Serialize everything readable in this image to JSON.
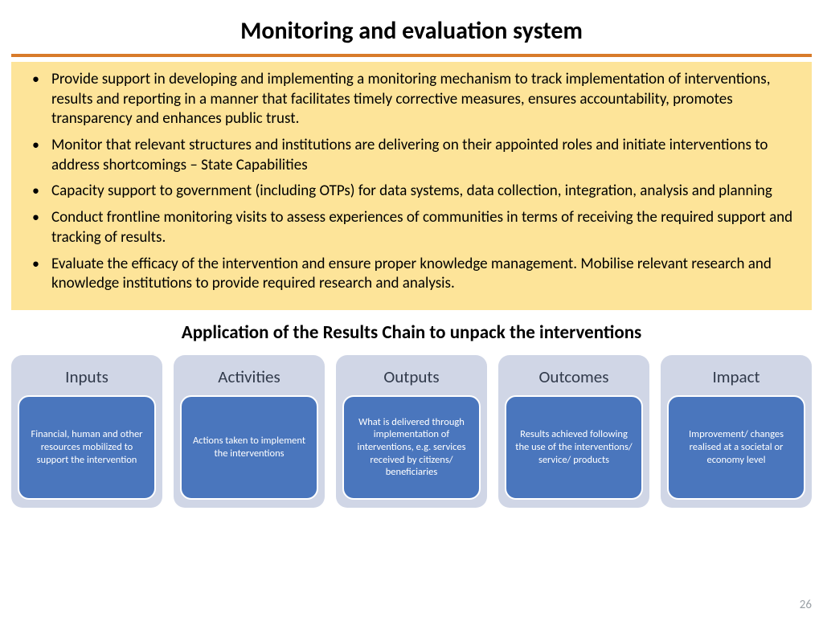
{
  "title": "Monitoring and evaluation system",
  "accent_bar_color": "#d87b2a",
  "box": {
    "background": "#fde499",
    "bullets": [
      "Provide support in developing and implementing a monitoring mechanism to track implementation of interventions, results and reporting in a manner that facilitates timely corrective measures, ensures accountability, promotes transparency and enhances public trust.",
      "Monitor that relevant structures and institutions are delivering on their appointed roles and initiate interventions to address shortcomings – State Capabilities",
      "Capacity support to government (including OTPs) for data systems, data collection, integration, analysis and planning",
      "Conduct frontline monitoring visits to assess experiences of communities in terms of receiving the required support and tracking of results.",
      "Evaluate the efficacy of the intervention and ensure proper knowledge management. Mobilise relevant research and knowledge institutions to provide required research and analysis."
    ]
  },
  "subtitle": "Application of the Results Chain to unpack the interventions",
  "cards": {
    "outer_bg": "#d0d6e6",
    "inner_bg": "#4a76bd",
    "items": [
      {
        "title": "Inputs",
        "desc": "Financial, human and other resources mobilized to support the intervention"
      },
      {
        "title": "Activities",
        "desc": "Actions taken to implement the interventions"
      },
      {
        "title": "Outputs",
        "desc": "What is delivered through implementation of interventions, e.g. services received by citizens/ beneficiaries"
      },
      {
        "title": "Outcomes",
        "desc": "Results achieved following the use of the interventions/ service/ products"
      },
      {
        "title": "Impact",
        "desc": "Improvement/ changes realised at a societal or economy level"
      }
    ]
  },
  "page_number": "26"
}
